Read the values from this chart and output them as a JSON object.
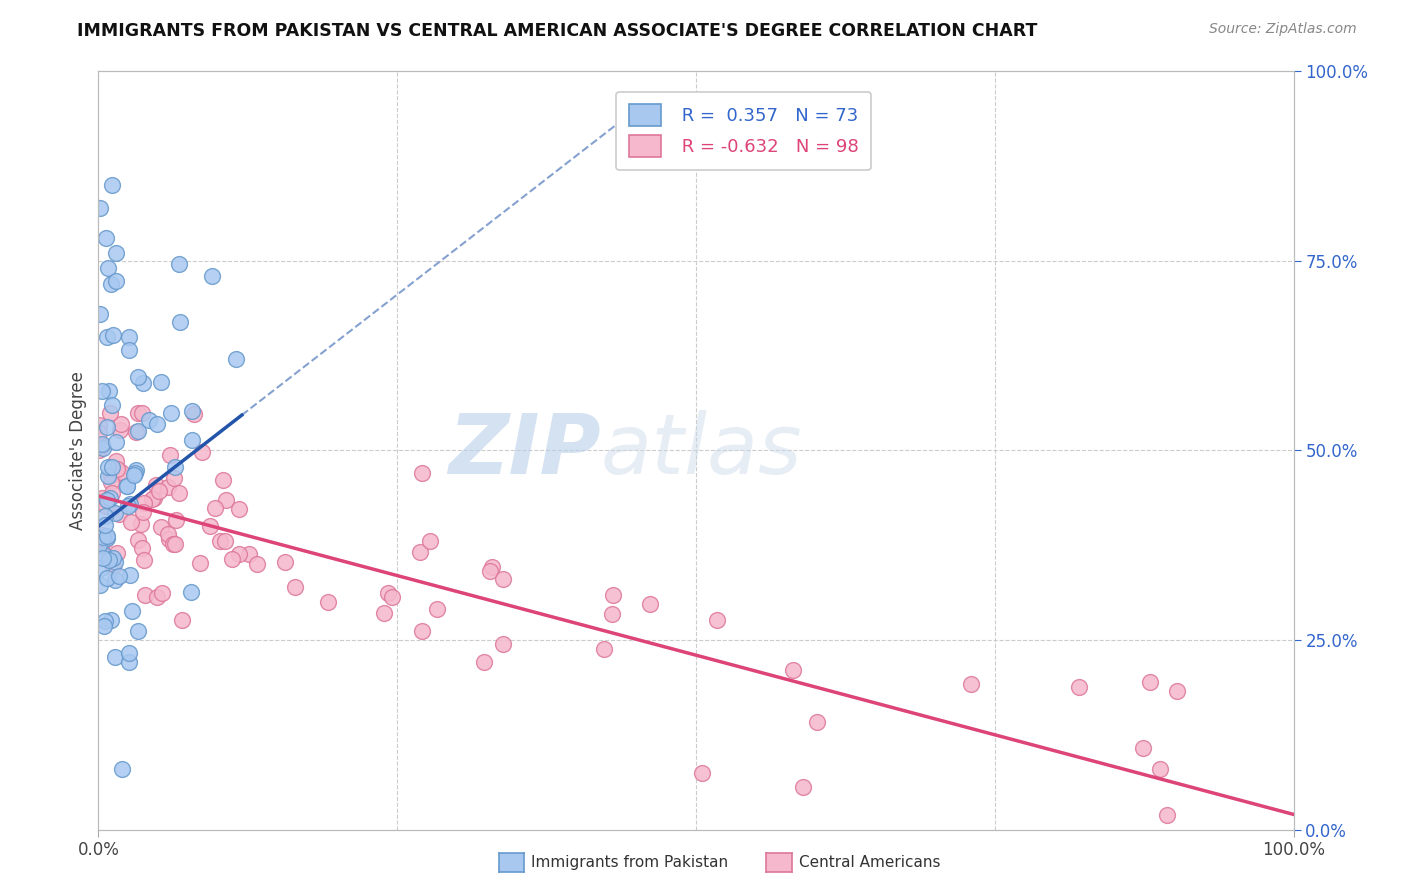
{
  "title": "IMMIGRANTS FROM PAKISTAN VS CENTRAL AMERICAN ASSOCIATE'S DEGREE CORRELATION CHART",
  "source": "Source: ZipAtlas.com",
  "ylabel": "Associate's Degree",
  "r_pakistan": 0.357,
  "n_pakistan": 73,
  "r_central": -0.632,
  "n_central": 98,
  "pakistan_color": "#a8c8f0",
  "pakistan_edge": "#6699cc",
  "central_color": "#f5b8cc",
  "central_edge": "#dd7799",
  "trend_pakistan_color": "#2255aa",
  "trend_central_color": "#dd4477",
  "watermark_zip": "ZIP",
  "watermark_atlas": "atlas",
  "background_color": "#ffffff",
  "grid_color": "#cccccc",
  "right_tick_color": "#3366cc"
}
